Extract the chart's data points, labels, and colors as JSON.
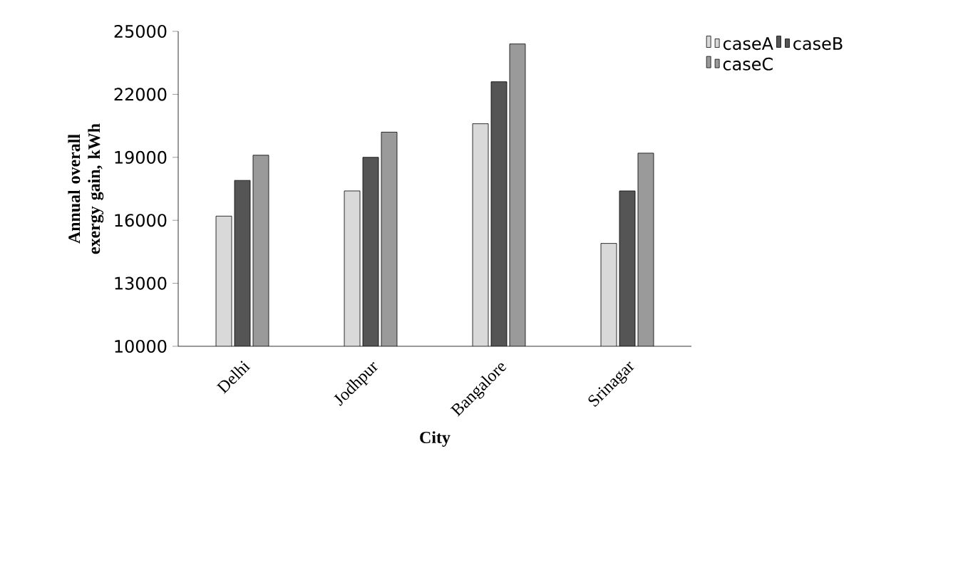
{
  "chart_data": {
    "type": "bar",
    "xlabel": "City",
    "ylabel": "Annual overall exergy gain, kWh",
    "categories": [
      "Delhi",
      "Jodhpur",
      "Bangalore",
      "Srinagar"
    ],
    "series": [
      {
        "name": "caseA",
        "color": "#d9d9d9",
        "values": [
          16200,
          17400,
          20600,
          14900
        ]
      },
      {
        "name": "caseB",
        "color": "#555555",
        "values": [
          17900,
          19000,
          22600,
          17400
        ]
      },
      {
        "name": "caseC",
        "color": "#9a9a9a",
        "values": [
          19100,
          20200,
          24400,
          19200
        ]
      }
    ],
    "ylim": [
      10000,
      25000
    ],
    "yticks": [
      10000,
      13000,
      16000,
      19000,
      22000,
      25000
    ],
    "grid": false,
    "legend": "top right"
  }
}
